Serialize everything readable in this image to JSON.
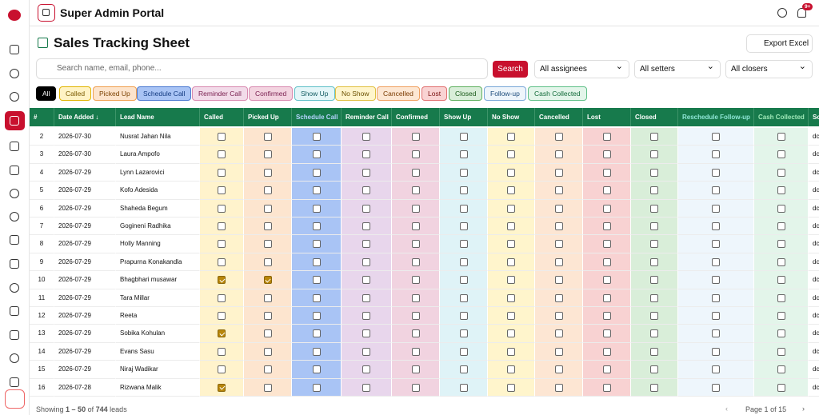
{
  "header": {
    "title": "Super Admin Portal",
    "notification_badge": "9+"
  },
  "page": {
    "title": "Sales Tracking Sheet",
    "export": "Export Excel"
  },
  "search": {
    "placeholder": "Search name, email, phone...",
    "button": "Search"
  },
  "filters": [
    "All assignees",
    "All setters",
    "All closers"
  ],
  "chips": [
    "All",
    "Called",
    "Picked Up",
    "Schedule Call",
    "Reminder Call",
    "Confirmed",
    "Show Up",
    "No Show",
    "Cancelled",
    "Lost",
    "Closed",
    "Follow-up",
    "Cash Collected"
  ],
  "table": {
    "columns": [
      "#",
      "Date Added ↓",
      "Lead Name",
      "Called",
      "Picked Up",
      "Schedule Call",
      "Reminder Call",
      "Confirmed",
      "Show Up",
      "No Show",
      "Cancelled",
      "Lost",
      "Closed",
      "Reschedule Follow-up",
      "Cash Collected",
      "Sc"
    ],
    "rows": [
      {
        "n": 2,
        "date": "2026-07-30",
        "name": "Nusrat Jahan Nila",
        "checked": [],
        "extra": "dc"
      },
      {
        "n": 3,
        "date": "2026-07-30",
        "name": "Laura Ampofo",
        "checked": [],
        "extra": "dc"
      },
      {
        "n": 4,
        "date": "2026-07-29",
        "name": "Lynn Lazarovici",
        "checked": [],
        "extra": "dc"
      },
      {
        "n": 5,
        "date": "2026-07-29",
        "name": "Kofo Adesida",
        "checked": [],
        "extra": "dc"
      },
      {
        "n": 6,
        "date": "2026-07-29",
        "name": "Shaheda Begum",
        "checked": [],
        "extra": "dc"
      },
      {
        "n": 7,
        "date": "2026-07-29",
        "name": "Gogineni Radhika",
        "checked": [],
        "extra": "dc"
      },
      {
        "n": 8,
        "date": "2026-07-29",
        "name": "Holly Manning",
        "checked": [],
        "extra": "dc"
      },
      {
        "n": 9,
        "date": "2026-07-29",
        "name": "Prapurna Konakandla",
        "checked": [],
        "extra": "dc"
      },
      {
        "n": 10,
        "date": "2026-07-29",
        "name": "Bhagbhari musawar",
        "checked": [
          0,
          1
        ],
        "extra": "dc"
      },
      {
        "n": 11,
        "date": "2026-07-29",
        "name": "Tara Millar",
        "checked": [],
        "extra": "dc"
      },
      {
        "n": 12,
        "date": "2026-07-29",
        "name": "Reeta",
        "checked": [],
        "extra": "dc"
      },
      {
        "n": 13,
        "date": "2026-07-29",
        "name": "Sobika Kohulan",
        "checked": [
          0
        ],
        "extra": "dc"
      },
      {
        "n": 14,
        "date": "2026-07-29",
        "name": "Evans Sasu",
        "checked": [],
        "extra": "dc"
      },
      {
        "n": 15,
        "date": "2026-07-29",
        "name": "Niraj Wadikar",
        "checked": [],
        "extra": "dc"
      },
      {
        "n": 16,
        "date": "2026-07-28",
        "name": "Rizwana Malik",
        "checked": [
          0
        ],
        "extra": "dc"
      }
    ]
  },
  "footer": {
    "showing": "Showing",
    "range": "1 – 50",
    "of": "of",
    "total": "744",
    "leads": "leads",
    "page": "Page",
    "current": "1",
    "page_of": "of",
    "pages": "15"
  }
}
